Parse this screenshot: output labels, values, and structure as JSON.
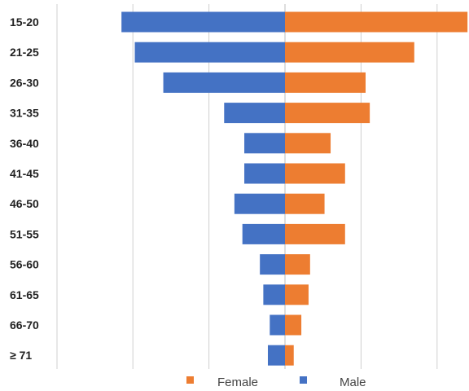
{
  "chart_data": {
    "type": "bar",
    "orientation": "horizontal",
    "layout": "population-pyramid",
    "categories": [
      "15-20",
      "21-25",
      "26-30",
      "31-35",
      "36-40",
      "41-45",
      "46-50",
      "51-55",
      "56-60",
      "61-65",
      "66-70",
      "≥ 71"
    ],
    "series": [
      {
        "name": "Male",
        "color": "#4472C4",
        "direction": "left",
        "values": [
          43,
          39.5,
          32,
          16,
          10.7,
          10.7,
          13.3,
          11.2,
          6.6,
          5.7,
          4,
          4.5
        ]
      },
      {
        "name": "Female",
        "color": "#ED7D31",
        "direction": "right",
        "values": [
          48,
          34,
          21.2,
          22.3,
          12,
          15.8,
          10.4,
          15.8,
          6.6,
          6.2,
          4.3,
          2.3
        ]
      }
    ],
    "xlim": [
      -60,
      48
    ],
    "grid": true,
    "gridlines_at": [
      -40,
      -20,
      0,
      20,
      40
    ],
    "legend": {
      "position": "bottom",
      "entries": [
        {
          "label": "Female",
          "color": "#ED7D31"
        },
        {
          "label": "Male",
          "color": "#4472C4"
        }
      ]
    },
    "title": "",
    "xlabel": "",
    "ylabel": ""
  }
}
